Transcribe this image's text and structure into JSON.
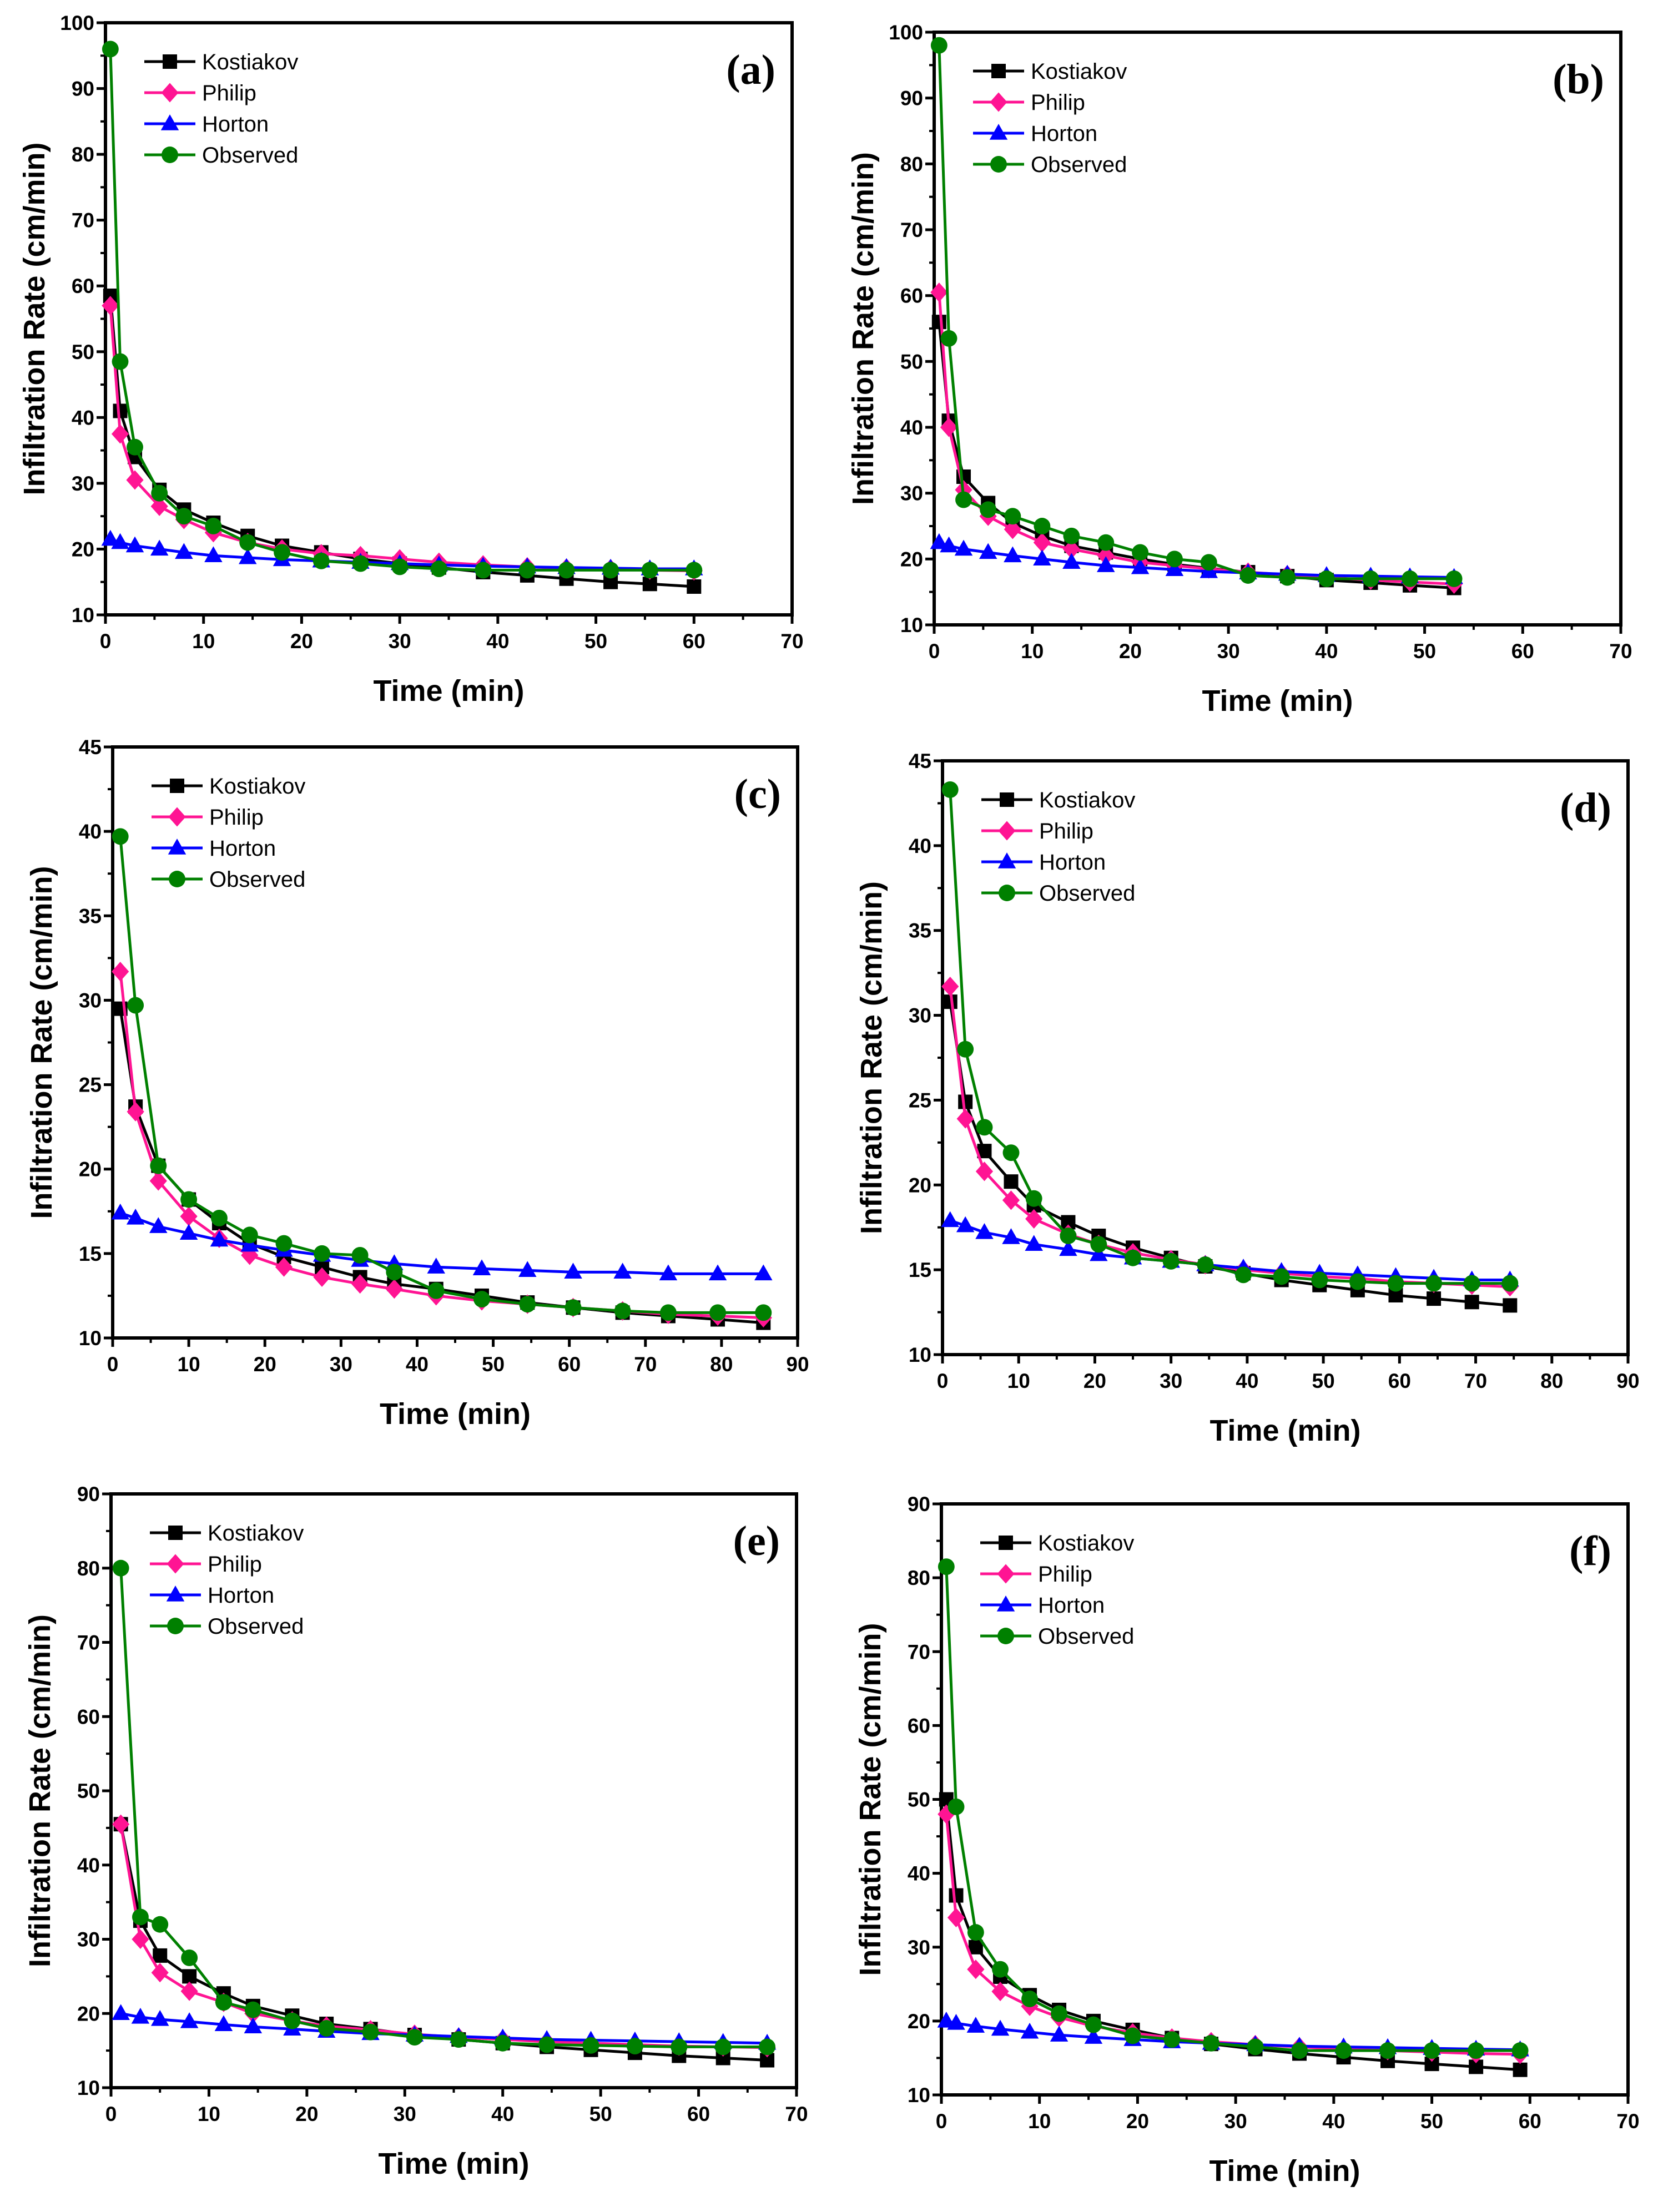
{
  "series_styles": [
    {
      "name": "Kostiakov",
      "color": "#000000",
      "marker": "square"
    },
    {
      "name": "Philip",
      "color": "#ff1493",
      "marker": "diamond"
    },
    {
      "name": "Horton",
      "color": "#0000ff",
      "marker": "triangle"
    },
    {
      "name": "Observed",
      "color": "#008000",
      "marker": "circle"
    }
  ],
  "chart_data": [
    {
      "type": "line",
      "panel_label": "(a)",
      "xlabel": "Time (min)",
      "ylabel": "Infiltration Rate (cm/min)",
      "xlim": [
        0,
        70
      ],
      "ylim": [
        10,
        100
      ],
      "xticks": [
        "0",
        "10",
        "20",
        "30",
        "40",
        "50",
        "60",
        "70"
      ],
      "yticks": [
        "10",
        "20",
        "30",
        "40",
        "50",
        "60",
        "70",
        "80",
        "90",
        "100"
      ],
      "legend_position": "top-left",
      "x": [
        0.5,
        1.5,
        3,
        5.5,
        8,
        11,
        14.5,
        18,
        22,
        26,
        30,
        34,
        38.5,
        43,
        47,
        51.5,
        55.5,
        60
      ],
      "series": [
        {
          "name": "Kostiakov",
          "values": [
            58.5,
            41,
            34,
            29,
            26,
            24,
            22,
            20.5,
            19.5,
            18.5,
            17.8,
            17.2,
            16.5,
            16,
            15.5,
            15,
            14.7,
            14.3
          ]
        },
        {
          "name": "Philip",
          "values": [
            57,
            37.5,
            30.5,
            26.5,
            24.5,
            22.5,
            21,
            20,
            19.3,
            19,
            18.5,
            18,
            17.6,
            17.3,
            17.1,
            17,
            16.8,
            16.7
          ]
        },
        {
          "name": "Horton",
          "values": [
            21.5,
            21,
            20.5,
            20,
            19.5,
            19,
            18.7,
            18.4,
            18.2,
            18,
            17.8,
            17.6,
            17.4,
            17.3,
            17.2,
            17.1,
            17,
            17
          ]
        },
        {
          "name": "Observed",
          "values": [
            96,
            48.5,
            35.5,
            28.5,
            25,
            23.5,
            21,
            19.5,
            18.2,
            17.8,
            17.3,
            17,
            16.8,
            16.8,
            16.8,
            16.8,
            16.8,
            16.8
          ]
        }
      ]
    },
    {
      "type": "line",
      "panel_label": "(b)",
      "xlabel": "Time (min)",
      "ylabel": "Infiltration Rate (cm/min)",
      "xlim": [
        0,
        70
      ],
      "ylim": [
        10,
        100
      ],
      "xticks": [
        "0",
        "10",
        "20",
        "30",
        "40",
        "50",
        "60",
        "70"
      ],
      "yticks": [
        "10",
        "20",
        "30",
        "40",
        "50",
        "60",
        "70",
        "80",
        "90",
        "100"
      ],
      "legend_position": "top-left",
      "x": [
        0.5,
        1.5,
        3,
        5.5,
        8,
        11,
        14,
        17.5,
        21,
        24.5,
        28,
        32,
        36,
        40,
        44.5,
        48.5,
        53
      ],
      "series": [
        {
          "name": "Kostiakov",
          "values": [
            56,
            41,
            32.5,
            28.5,
            25.5,
            23.5,
            22,
            21,
            20,
            19.2,
            18.6,
            18,
            17.4,
            16.8,
            16.4,
            16,
            15.6
          ]
        },
        {
          "name": "Philip",
          "values": [
            60.5,
            40,
            30.5,
            26.5,
            24.5,
            22.5,
            21.5,
            20.5,
            19.5,
            19,
            18.5,
            18,
            17.6,
            17.2,
            16.8,
            16.5,
            16.2
          ]
        },
        {
          "name": "Horton",
          "values": [
            22.5,
            22,
            21.5,
            21,
            20.5,
            20,
            19.5,
            19,
            18.7,
            18.4,
            18.1,
            17.9,
            17.7,
            17.5,
            17.4,
            17.3,
            17.2
          ]
        },
        {
          "name": "Observed",
          "values": [
            98,
            53.5,
            29,
            27.5,
            26.5,
            25,
            23.5,
            22.5,
            21,
            20,
            19.5,
            17.5,
            17.2,
            17,
            17,
            17,
            17
          ]
        }
      ]
    },
    {
      "type": "line",
      "panel_label": "(c)",
      "xlabel": "Time (min)",
      "ylabel": "Infiltration Rate (cm/min)",
      "xlim": [
        0,
        90
      ],
      "ylim": [
        10,
        45
      ],
      "xticks": [
        "0",
        "10",
        "20",
        "30",
        "40",
        "50",
        "60",
        "70",
        "80",
        "90"
      ],
      "yticks": [
        "10",
        "15",
        "20",
        "25",
        "30",
        "35",
        "40",
        "45"
      ],
      "legend_position": "top-left",
      "x": [
        1,
        3,
        6,
        10,
        14,
        18,
        22.5,
        27.5,
        32.5,
        37,
        42.5,
        48.5,
        54.5,
        60.5,
        67,
        73,
        79.5,
        85.5
      ],
      "series": [
        {
          "name": "Kostiakov",
          "values": [
            29.5,
            23.7,
            20.2,
            18.2,
            16.8,
            15.6,
            14.8,
            14.2,
            13.6,
            13.2,
            12.9,
            12.5,
            12.1,
            11.8,
            11.5,
            11.3,
            11.1,
            10.9
          ]
        },
        {
          "name": "Philip",
          "values": [
            31.7,
            23.4,
            19.3,
            17.2,
            15.9,
            14.9,
            14.2,
            13.6,
            13.2,
            12.9,
            12.5,
            12.2,
            12,
            11.8,
            11.6,
            11.4,
            11.3,
            11.2
          ]
        },
        {
          "name": "Horton",
          "values": [
            17.4,
            17.1,
            16.6,
            16.2,
            15.8,
            15.5,
            15.2,
            14.9,
            14.6,
            14.4,
            14.2,
            14.1,
            14,
            13.9,
            13.9,
            13.8,
            13.8,
            13.8
          ]
        },
        {
          "name": "Observed",
          "values": [
            39.7,
            29.7,
            20.2,
            18.2,
            17.1,
            16.1,
            15.6,
            15,
            14.9,
            13.9,
            12.8,
            12.3,
            12,
            11.8,
            11.6,
            11.5,
            11.5,
            11.5
          ]
        }
      ]
    },
    {
      "type": "line",
      "panel_label": "(d)",
      "xlabel": "Time (min)",
      "ylabel": "Infiltration Rate (cm/min)",
      "xlim": [
        0,
        90
      ],
      "ylim": [
        10,
        45
      ],
      "xticks": [
        "0",
        "10",
        "20",
        "30",
        "40",
        "50",
        "60",
        "70",
        "80",
        "90"
      ],
      "yticks": [
        "10",
        "15",
        "20",
        "25",
        "30",
        "35",
        "40",
        "45"
      ],
      "legend_position": "top-left",
      "x": [
        1,
        3,
        5.5,
        9,
        12,
        16.5,
        20.5,
        25,
        30,
        34.5,
        39.5,
        44.5,
        49.5,
        54.5,
        59.5,
        64.5,
        69.5,
        74.5
      ],
      "series": [
        {
          "name": "Kostiakov",
          "values": [
            30.8,
            24.9,
            22,
            20.2,
            18.8,
            17.8,
            17,
            16.3,
            15.7,
            15.2,
            14.8,
            14.4,
            14.1,
            13.8,
            13.5,
            13.3,
            13.1,
            12.9
          ]
        },
        {
          "name": "Philip",
          "values": [
            31.7,
            23.9,
            20.8,
            19.1,
            18,
            17.1,
            16.5,
            16,
            15.6,
            15.3,
            15,
            14.8,
            14.6,
            14.5,
            14.3,
            14.2,
            14.1,
            14
          ]
        },
        {
          "name": "Horton",
          "values": [
            17.9,
            17.6,
            17.2,
            16.9,
            16.5,
            16.2,
            15.9,
            15.7,
            15.5,
            15.3,
            15.1,
            14.9,
            14.8,
            14.7,
            14.6,
            14.5,
            14.4,
            14.4
          ]
        },
        {
          "name": "Observed",
          "values": [
            43.3,
            28,
            23.4,
            21.9,
            19.2,
            17,
            16.5,
            15.7,
            15.5,
            15.3,
            14.7,
            14.6,
            14.4,
            14.3,
            14.2,
            14.2,
            14.2,
            14.2
          ]
        }
      ]
    },
    {
      "type": "line",
      "panel_label": "(e)",
      "xlabel": "Time (min)",
      "ylabel": "Infiltration Rate (cm/min)",
      "xlim": [
        0,
        70
      ],
      "ylim": [
        10,
        90
      ],
      "xticks": [
        "0",
        "10",
        "20",
        "30",
        "40",
        "50",
        "60",
        "70"
      ],
      "yticks": [
        "10",
        "20",
        "30",
        "40",
        "50",
        "60",
        "70",
        "80",
        "90"
      ],
      "legend_position": "top-left",
      "x": [
        1,
        3,
        5,
        8,
        11.5,
        14.5,
        18.5,
        22,
        26.5,
        31,
        35.5,
        40,
        44.5,
        49,
        53.5,
        58,
        62.5,
        67
      ],
      "series": [
        {
          "name": "Kostiakov",
          "values": [
            45.5,
            32.5,
            27.8,
            25,
            22.7,
            21,
            19.7,
            18.6,
            17.9,
            17.1,
            16.5,
            16,
            15.5,
            15.1,
            14.7,
            14.3,
            14,
            13.7
          ]
        },
        {
          "name": "Philip",
          "values": [
            45.5,
            30,
            25.5,
            23,
            21.5,
            20,
            19,
            18.3,
            17.8,
            17.2,
            16.8,
            16.5,
            16.2,
            16,
            15.8,
            15.6,
            15.5,
            15.4
          ]
        },
        {
          "name": "Horton",
          "values": [
            20,
            19.5,
            19.2,
            18.9,
            18.5,
            18.2,
            17.9,
            17.6,
            17.3,
            17.1,
            16.9,
            16.7,
            16.5,
            16.4,
            16.3,
            16.2,
            16.1,
            16
          ]
        },
        {
          "name": "Observed",
          "values": [
            80,
            33,
            32,
            27.5,
            21.5,
            20.5,
            19,
            18,
            17.5,
            16.8,
            16.5,
            16,
            15.8,
            15.7,
            15.6,
            15.5,
            15.5,
            15.5
          ]
        }
      ]
    },
    {
      "type": "line",
      "panel_label": "(f)",
      "xlabel": "Time (min)",
      "ylabel": "Infiltration Rate (cm/min)",
      "xlim": [
        0,
        70
      ],
      "ylim": [
        10,
        90
      ],
      "xticks": [
        "0",
        "10",
        "20",
        "30",
        "40",
        "50",
        "60",
        "70"
      ],
      "yticks": [
        "10",
        "20",
        "30",
        "40",
        "50",
        "60",
        "70",
        "80",
        "90"
      ],
      "legend_position": "top-left",
      "x": [
        0.5,
        1.5,
        3.5,
        6,
        9,
        12,
        15.5,
        19.5,
        23.5,
        27.5,
        32,
        36.5,
        41,
        45.5,
        50,
        54.5,
        59
      ],
      "series": [
        {
          "name": "Kostiakov",
          "values": [
            50,
            37,
            30,
            26,
            23.5,
            21.5,
            20,
            18.8,
            17.7,
            16.9,
            16.2,
            15.6,
            15.1,
            14.6,
            14.2,
            13.8,
            13.4
          ]
        },
        {
          "name": "Philip",
          "values": [
            48,
            34,
            27,
            24,
            22,
            20.5,
            19.3,
            18.4,
            17.7,
            17.2,
            16.8,
            16.5,
            16.2,
            16,
            15.8,
            15.6,
            15.5
          ]
        },
        {
          "name": "Horton",
          "values": [
            20,
            19.7,
            19.3,
            18.9,
            18.5,
            18.1,
            17.8,
            17.5,
            17.2,
            17,
            16.8,
            16.6,
            16.5,
            16.4,
            16.3,
            16.2,
            16.1
          ]
        },
        {
          "name": "Observed",
          "values": [
            81.5,
            49,
            32,
            27,
            23,
            21,
            19.5,
            18,
            17.5,
            17,
            16.5,
            16,
            16,
            16,
            16,
            16,
            16
          ]
        }
      ]
    }
  ]
}
